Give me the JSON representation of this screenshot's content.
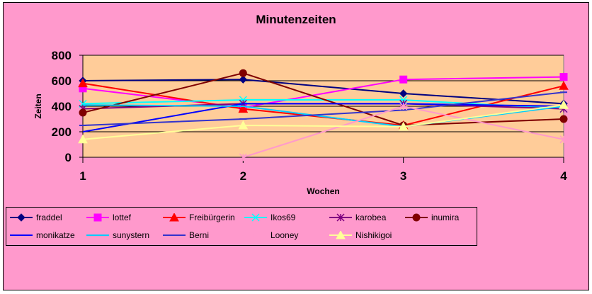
{
  "colors": {
    "chart_bg": "#ff99cc",
    "plot_bg": "#ffcc99",
    "gridline": "#000000"
  },
  "chart_data": {
    "type": "line",
    "title": "Minutenzeiten",
    "xlabel": "Wochen",
    "ylabel": "Zeiten",
    "categories": [
      "1",
      "2",
      "3",
      "4"
    ],
    "ylim": [
      0,
      800
    ],
    "yticks": [
      "0",
      "200",
      "400",
      "600",
      "800"
    ],
    "grid": true,
    "legend_position": "bottom",
    "series": [
      {
        "name": "fraddel",
        "color": "#000080",
        "marker": "diamond",
        "values": [
          600,
          610,
          500,
          420
        ]
      },
      {
        "name": "lottef",
        "color": "#ff00ff",
        "marker": "square",
        "values": [
          540,
          390,
          610,
          630
        ]
      },
      {
        "name": "Freibürgerin",
        "color": "#ff0000",
        "marker": "triangle",
        "values": [
          580,
          380,
          250,
          560
        ]
      },
      {
        "name": "Ikos69",
        "color": "#00ffff",
        "marker": "x",
        "values": [
          420,
          450,
          450,
          380
        ]
      },
      {
        "name": "karobea",
        "color": "#800080",
        "marker": "star",
        "values": [
          380,
          420,
          420,
          380
        ]
      },
      {
        "name": "inumira",
        "color": "#800000",
        "marker": "circle",
        "values": [
          350,
          660,
          250,
          300
        ]
      },
      {
        "name": "monikatze",
        "color": "#0000ff",
        "marker": "none",
        "values": [
          200,
          420,
          420,
          400
        ]
      },
      {
        "name": "sunystern",
        "color": "#00ccff",
        "marker": "none",
        "values": [
          410,
          400,
          240,
          400
        ]
      },
      {
        "name": "Berni",
        "color": "#3333cc",
        "marker": "dash",
        "values": [
          250,
          300,
          370,
          510
        ]
      },
      {
        "name": "Looney",
        "color": "#ff99cc",
        "marker": "star",
        "values": [
          null,
          0,
          400,
          140
        ]
      },
      {
        "name": "Nishikigoi",
        "color": "#ffff99",
        "marker": "triangle",
        "values": [
          140,
          250,
          240,
          410
        ]
      }
    ]
  }
}
